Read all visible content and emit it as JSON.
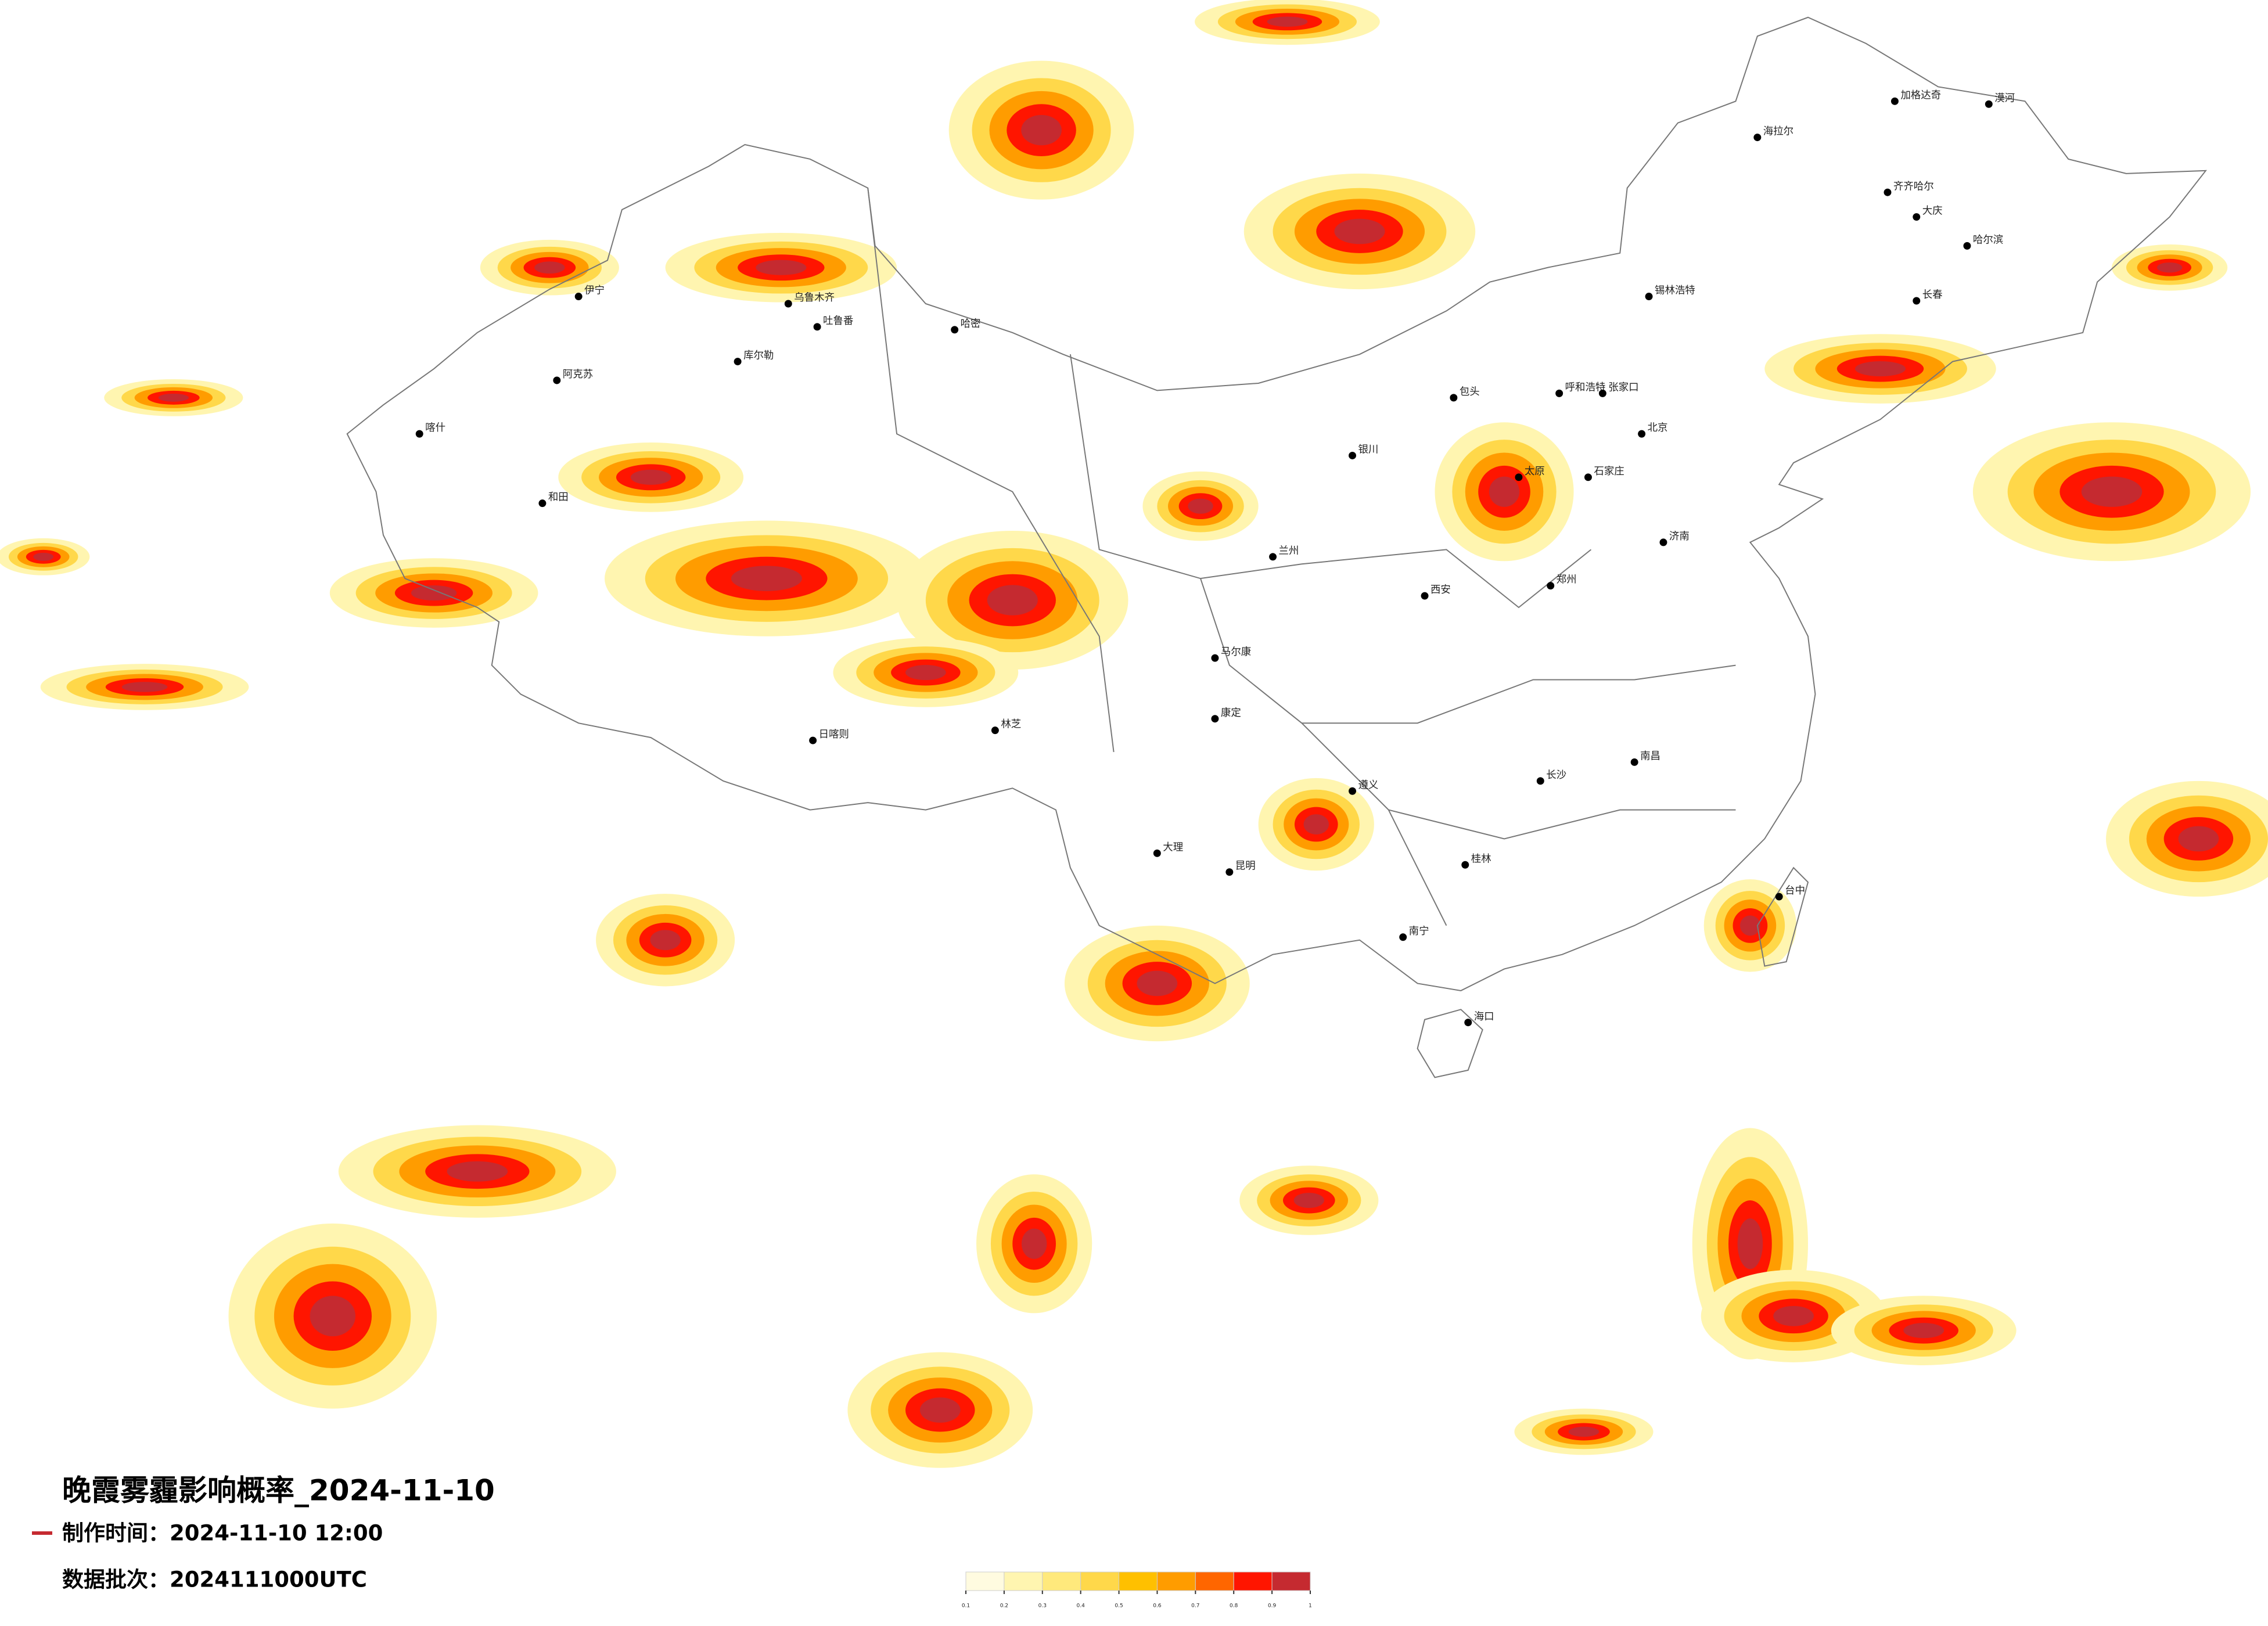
{
  "title": "晚霞雾霾影响概率_2024-11-10",
  "production_time": "制作时间：2024-11-10 12:00",
  "data_batch": "数据批次：2024111000UTC",
  "colorbar": {
    "ticks": [
      0.1,
      0.2,
      0.3,
      0.4,
      0.5,
      0.6,
      0.7,
      0.8,
      0.9,
      1
    ],
    "colors": [
      "#fffbe0",
      "#fff5b0",
      "#ffe97c",
      "#ffd84a",
      "#ffc000",
      "#ff9c00",
      "#ff6600",
      "#ff1500",
      "#c52a30"
    ]
  },
  "cities": [
    "漠河",
    "加格达奇",
    "海拉尔",
    "齐齐哈尔",
    "大庆",
    "哈尔滨",
    "长春",
    "锡林浩特",
    "呼和浩特",
    "张家口",
    "包头",
    "北京",
    "石家庄",
    "太原",
    "济南",
    "郑州",
    "银川",
    "兰州",
    "西安",
    "伊宁",
    "乌鲁木齐",
    "吐鲁番",
    "哈密",
    "库尔勒",
    "阿克苏",
    "喀什",
    "和田",
    "日喀则",
    "林芝",
    "马尔康",
    "康定",
    "大理",
    "昆明",
    "遵义",
    "南宁",
    "桂林",
    "长沙",
    "南昌",
    "海口",
    "台中"
  ]
}
